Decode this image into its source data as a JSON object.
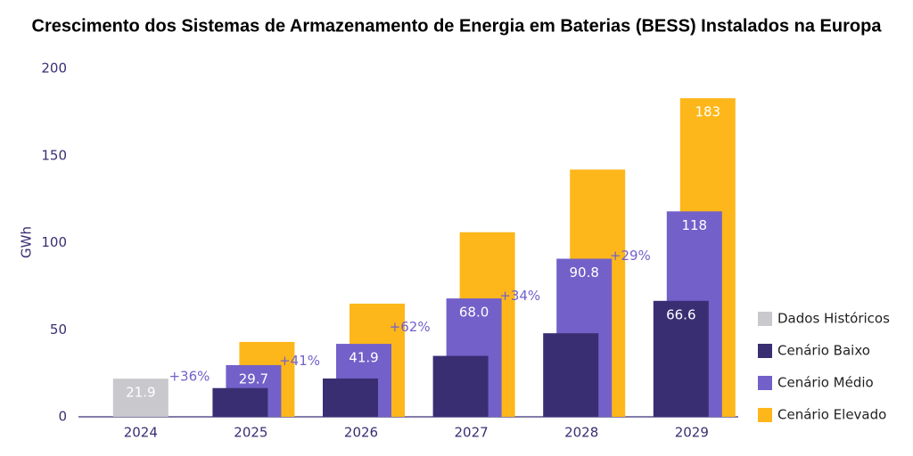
{
  "chart_data": {
    "type": "bar",
    "title": "Crescimento dos Sistemas de Armazenamento de Energia em Baterias (BESS) Instalados na Europa",
    "y_label": "GWh",
    "categories": [
      "2024",
      "2025",
      "2026",
      "2027",
      "2028",
      "2029"
    ],
    "series": [
      {
        "name": "Dados Históricos",
        "color": "#c9c8cc",
        "values": [
          21.9,
          null,
          null,
          null,
          null,
          null
        ],
        "value_labels": [
          "21.9",
          null,
          null,
          null,
          null,
          null
        ]
      },
      {
        "name": "Cenário Baixo",
        "color": "#3a2e73",
        "values": [
          null,
          16.5,
          22,
          35,
          48,
          66.6
        ],
        "value_labels": [
          null,
          null,
          null,
          null,
          null,
          "66.6"
        ]
      },
      {
        "name": "Cenário Médio",
        "color": "#7361c9",
        "values": [
          null,
          29.7,
          41.9,
          68.0,
          90.8,
          118
        ],
        "value_labels": [
          null,
          "29.7",
          "41.9",
          "68.0",
          "90.8",
          "118"
        ]
      },
      {
        "name": "Cenário Elevado",
        "color": "#fdb71a",
        "values": [
          null,
          43,
          65,
          106,
          142,
          183
        ],
        "value_labels": [
          null,
          null,
          null,
          null,
          null,
          "183"
        ]
      }
    ],
    "annotations": [
      "+36%",
      "+41%",
      "+62%",
      "+34%",
      "+29%"
    ],
    "ylim": [
      0,
      200
    ],
    "yticks": [
      0,
      50,
      100,
      150,
      200
    ],
    "grid": false
  }
}
